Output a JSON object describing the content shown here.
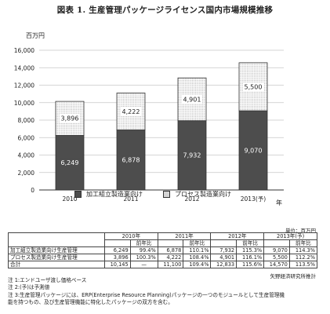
{
  "title": "図表 1.  生産管理パッケージライセンス国内市場規模推移",
  "chart_data": {
    "type": "bar",
    "stacked": true,
    "categories": [
      "2010",
      "2011",
      "2012",
      "2013(予)"
    ],
    "series": [
      {
        "name": "加工組立製造業向け",
        "values": [
          6249,
          6878,
          7932,
          9070
        ],
        "fill": "#4d4d4d",
        "labels": [
          "6,249",
          "6,878",
          "7,932",
          "9,070"
        ]
      },
      {
        "name": "プロセス製造業向け",
        "values": [
          3896,
          4222,
          4901,
          5500
        ],
        "fill": "dotted",
        "labels": [
          "3,896",
          "4,222",
          "4,901",
          "5,500"
        ]
      }
    ],
    "ylabel": "百万円",
    "xlabel": "年",
    "ylim": [
      0,
      16000
    ],
    "yticks": [
      "0",
      "2,000",
      "4,000",
      "6,000",
      "8,000",
      "10,000",
      "12,000",
      "14,000",
      "16,000"
    ],
    "grid": true,
    "legend_position": "bottom"
  },
  "table": {
    "unit_note": "単位：百万円",
    "years": [
      "2010年",
      "2011年",
      "2012年",
      "2013年(予)"
    ],
    "sub_header": "前年比",
    "rows": [
      {
        "label": "加工組立製造業向け生産管理",
        "cells": [
          "6,249",
          "99.4%",
          "6,878",
          "110.1%",
          "7,932",
          "115.3%",
          "9,070",
          "114.3%"
        ]
      },
      {
        "label": "プロセス製造業向け生産管理",
        "cells": [
          "3,896",
          "100.3%",
          "4,222",
          "108.4%",
          "4,901",
          "116.1%",
          "5,500",
          "112.2%"
        ]
      },
      {
        "label": "合計",
        "cells": [
          "10,145",
          "—",
          "11,100",
          "109.4%",
          "12,833",
          "115.6%",
          "14,570",
          "113.5%"
        ]
      }
    ]
  },
  "source": "矢野経済研究所推計",
  "notes": [
    "注 1:エンドユーザ渡し価格ベース",
    "注 2:(予)は予測値",
    "注 3:生産管理パッケージには、ERP(Enterprise Resource Planning)パッケージの一つのモジュールとして生産管理機",
    "能を持つもの、及び生産管理機能に特化したパッケージの双方を含む。"
  ]
}
